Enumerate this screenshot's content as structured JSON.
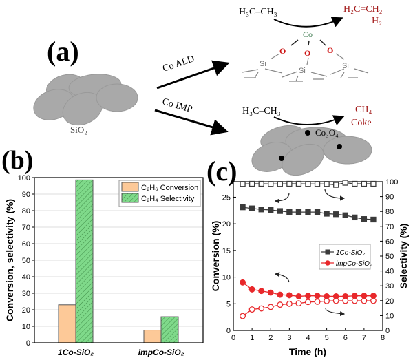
{
  "panel_labels": {
    "a": "(a)",
    "b": "(b)",
    "c": "(c)"
  },
  "schematic": {
    "support": "SiO₂",
    "route_top": "Co ALD",
    "route_bottom": "Co IMP",
    "reactant": "H₃C–CH₃",
    "products_top": [
      "H₂C=CH₂",
      "H₂"
    ],
    "products_bottom": [
      "CH₄",
      "Coke"
    ],
    "site_atoms": {
      "metal": "Co",
      "oxygen": "O",
      "silicon": "Si"
    },
    "particle_label": "Co₃O₄",
    "colors": {
      "product": "#a31a1a",
      "cobalt": "#3d7a4f",
      "oxygen": "#cc1111",
      "support": "#a9a9a9"
    }
  },
  "chart_data": [
    {
      "type": "bar",
      "panel": "(b)",
      "categories": [
        "1Co-SiO₂",
        "impCo-SiO₂"
      ],
      "series": [
        {
          "name": "C₂H₆ Conversion",
          "values": [
            23,
            7.7
          ],
          "color": "#fdc998"
        },
        {
          "name": "C₂H₄ Selectivity",
          "values": [
            98.6,
            15.8
          ],
          "color": "#7fd98a"
        }
      ],
      "xlabel": "",
      "ylabel": "Conversion, selectivity (%)",
      "ylim": [
        0,
        100
      ],
      "yticks": [
        0,
        10,
        20,
        30,
        40,
        50,
        60,
        70,
        80,
        90,
        100
      ],
      "grid": true,
      "legend": "top-right"
    },
    {
      "type": "line",
      "panel": "(c)",
      "x": [
        0.5,
        1,
        1.5,
        2,
        2.5,
        3,
        3.5,
        4,
        4.5,
        5,
        5.5,
        6,
        6.5,
        7,
        7.5
      ],
      "series": [
        {
          "name": "1Co-SiO₂",
          "axis": "left",
          "marker": "filled-square",
          "color": "#3a3a3a",
          "values": [
            23.1,
            22.9,
            22.7,
            22.6,
            22.4,
            22.2,
            22.2,
            22.2,
            22.2,
            21.9,
            21.8,
            21.6,
            21.2,
            20.9,
            20.8
          ]
        },
        {
          "axis": "right",
          "marker": "open-square",
          "color": "#3a3a3a",
          "values": [
            98.5,
            98.6,
            98.6,
            98.5,
            98.5,
            98.6,
            98.6,
            98.5,
            98.5,
            98.5,
            97.9,
            99.3,
            98.6,
            98.6,
            98.6
          ]
        },
        {
          "name": "impCo-SiO₂",
          "axis": "left",
          "marker": "filled-circle",
          "color": "#e8282b",
          "values": [
            9.0,
            7.7,
            7.4,
            7.1,
            6.7,
            6.6,
            6.4,
            6.5,
            6.5,
            6.4,
            6.4,
            6.4,
            6.5,
            6.5,
            6.5
          ]
        },
        {
          "axis": "right",
          "marker": "open-circle",
          "color": "#e8282b",
          "values": [
            9.7,
            14.1,
            14.8,
            15.8,
            17.3,
            17.9,
            18.2,
            19.1,
            19.3,
            19.8,
            19.9,
            19.9,
            19.9,
            19.9,
            19.9
          ]
        }
      ],
      "xlabel": "Time (h)",
      "ylabel_left": "Conversion (%)",
      "ylabel_right": "Selectivity (%)",
      "xlim": [
        0,
        8
      ],
      "ylim_left": [
        0,
        27.9
      ],
      "ylim_right": [
        0,
        100
      ],
      "xticks": [
        0,
        1,
        2,
        3,
        4,
        5,
        6,
        7,
        8
      ],
      "yticks_left": [
        0,
        5,
        10,
        15,
        20,
        25
      ],
      "yticks_right": [
        0,
        10,
        20,
        30,
        40,
        50,
        60,
        70,
        80,
        90,
        100
      ],
      "legend": "center-right"
    }
  ]
}
